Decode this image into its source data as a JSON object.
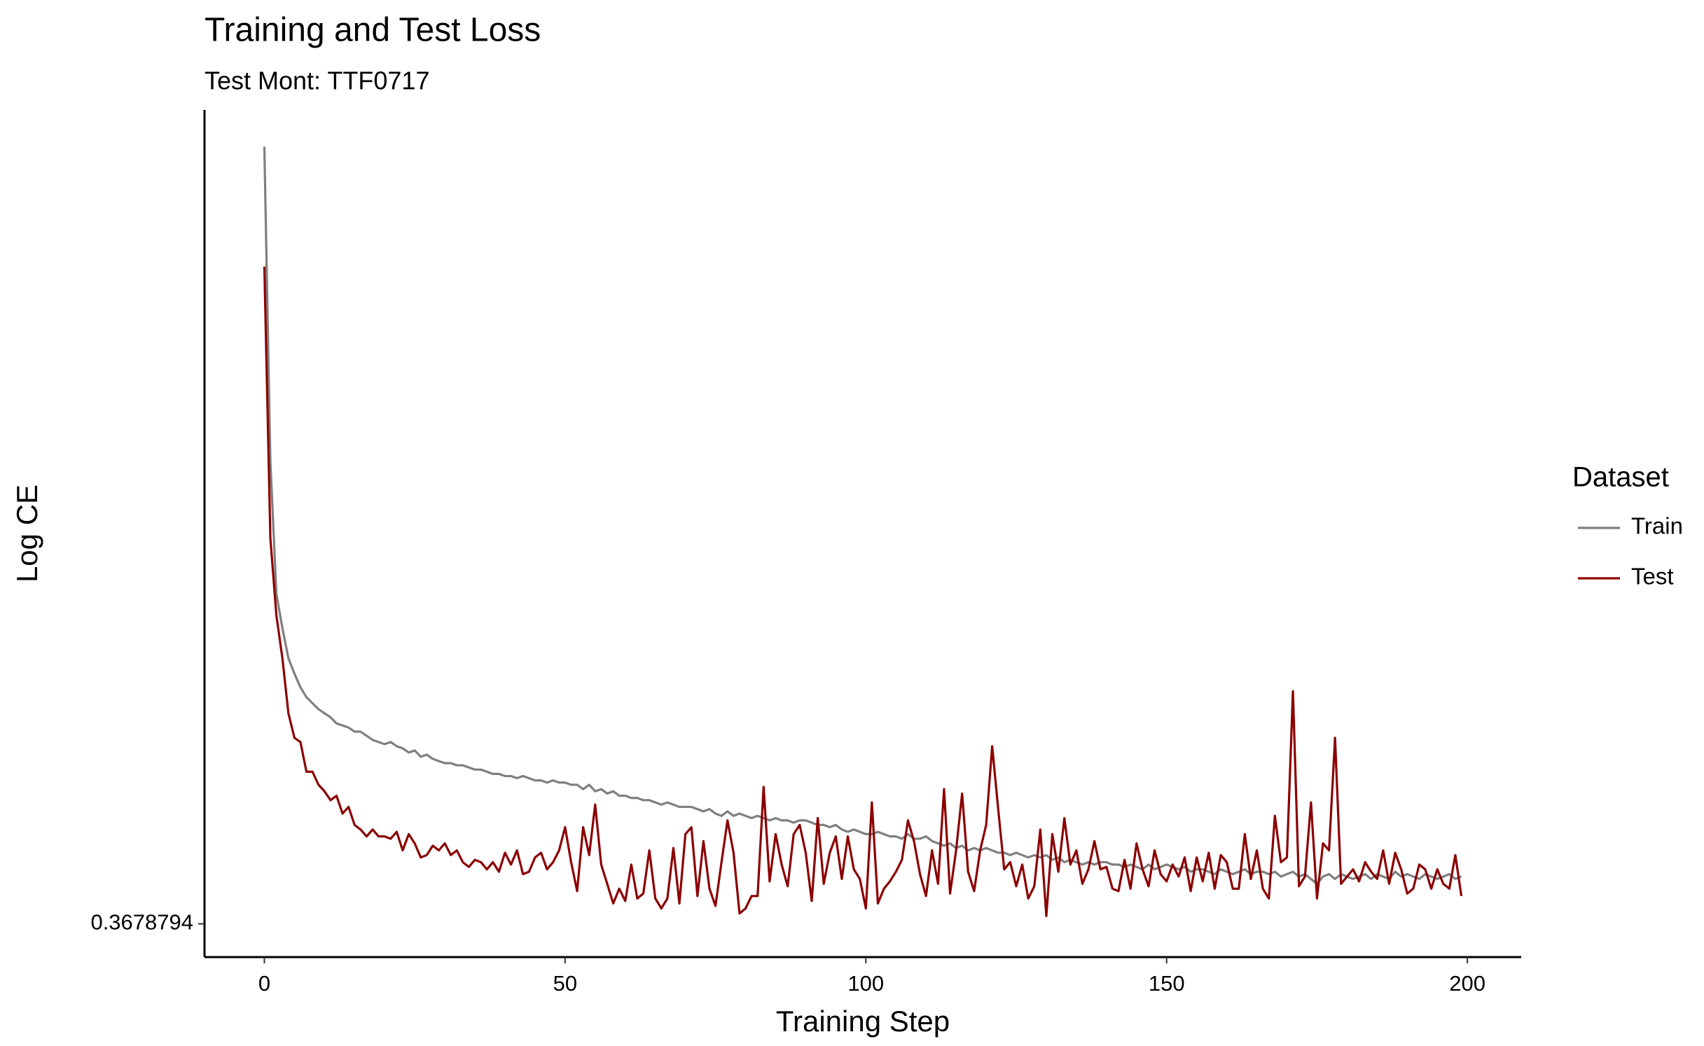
{
  "chart_data": {
    "type": "line",
    "title": "Training and Test Loss",
    "subtitle": "Test Mont: TTF0717",
    "x_label": "Training Step",
    "y_label": "Log CE",
    "legend_title": "Dataset",
    "legend_position": "right",
    "grid": false,
    "y_scale": "log",
    "xlim": [
      -9.95,
      208.95
    ],
    "xticks": [
      0,
      50,
      100,
      150,
      200
    ],
    "ylim": [
      0.355,
      0.88
    ],
    "yticks": [
      0.3678794
    ],
    "x": [
      0,
      1,
      2,
      3,
      4,
      5,
      6,
      7,
      8,
      9,
      10,
      11,
      12,
      13,
      14,
      15,
      16,
      17,
      18,
      19,
      20,
      21,
      22,
      23,
      24,
      25,
      26,
      27,
      28,
      29,
      30,
      31,
      32,
      33,
      34,
      35,
      36,
      37,
      38,
      39,
      40,
      41,
      42,
      43,
      44,
      45,
      46,
      47,
      48,
      49,
      50,
      51,
      52,
      53,
      54,
      55,
      56,
      57,
      58,
      59,
      60,
      61,
      62,
      63,
      64,
      65,
      66,
      67,
      68,
      69,
      70,
      71,
      72,
      73,
      74,
      75,
      76,
      77,
      78,
      79,
      80,
      81,
      82,
      83,
      84,
      85,
      86,
      87,
      88,
      89,
      90,
      91,
      92,
      93,
      94,
      95,
      96,
      97,
      98,
      99,
      100,
      101,
      102,
      103,
      104,
      105,
      106,
      107,
      108,
      109,
      110,
      111,
      112,
      113,
      114,
      115,
      116,
      117,
      118,
      119,
      120,
      121,
      122,
      123,
      124,
      125,
      126,
      127,
      128,
      129,
      130,
      131,
      132,
      133,
      134,
      135,
      136,
      137,
      138,
      139,
      140,
      141,
      142,
      143,
      144,
      145,
      146,
      147,
      148,
      149,
      150,
      151,
      152,
      153,
      154,
      155,
      156,
      157,
      158,
      159,
      160,
      161,
      162,
      163,
      164,
      165,
      166,
      167,
      168,
      169,
      170,
      171,
      172,
      173,
      174,
      175,
      176,
      177,
      178,
      179,
      180,
      181,
      182,
      183,
      184,
      185,
      186,
      187,
      188,
      189,
      190,
      191,
      192,
      193,
      194,
      195,
      196,
      197,
      198,
      199
    ],
    "series": [
      {
        "name": "Train",
        "color": "#7f7f7f",
        "values": [
          0.846,
          0.604,
          0.524,
          0.505,
          0.489,
          0.481,
          0.474,
          0.469,
          0.466,
          0.463,
          0.461,
          0.459,
          0.456,
          0.455,
          0.454,
          0.452,
          0.452,
          0.45,
          0.448,
          0.447,
          0.446,
          0.447,
          0.445,
          0.444,
          0.442,
          0.443,
          0.44,
          0.441,
          0.439,
          0.438,
          0.437,
          0.437,
          0.436,
          0.436,
          0.435,
          0.434,
          0.434,
          0.433,
          0.432,
          0.432,
          0.431,
          0.431,
          0.43,
          0.431,
          0.43,
          0.429,
          0.429,
          0.428,
          0.429,
          0.428,
          0.428,
          0.427,
          0.427,
          0.425,
          0.427,
          0.424,
          0.425,
          0.423,
          0.424,
          0.422,
          0.422,
          0.421,
          0.421,
          0.42,
          0.42,
          0.419,
          0.418,
          0.419,
          0.418,
          0.417,
          0.417,
          0.417,
          0.416,
          0.415,
          0.416,
          0.414,
          0.413,
          0.415,
          0.413,
          0.414,
          0.413,
          0.412,
          0.413,
          0.412,
          0.411,
          0.412,
          0.411,
          0.411,
          0.41,
          0.411,
          0.411,
          0.41,
          0.409,
          0.409,
          0.408,
          0.409,
          0.407,
          0.406,
          0.407,
          0.406,
          0.405,
          0.405,
          0.406,
          0.405,
          0.404,
          0.404,
          0.403,
          0.405,
          0.403,
          0.403,
          0.404,
          0.402,
          0.401,
          0.4,
          0.401,
          0.399,
          0.4,
          0.398,
          0.399,
          0.398,
          0.399,
          0.398,
          0.397,
          0.397,
          0.396,
          0.397,
          0.396,
          0.395,
          0.396,
          0.395,
          0.396,
          0.394,
          0.395,
          0.393,
          0.394,
          0.393,
          0.392,
          0.393,
          0.392,
          0.393,
          0.393,
          0.392,
          0.392,
          0.391,
          0.392,
          0.391,
          0.39,
          0.392,
          0.39,
          0.391,
          0.392,
          0.391,
          0.39,
          0.391,
          0.389,
          0.39,
          0.39,
          0.389,
          0.388,
          0.39,
          0.389,
          0.388,
          0.389,
          0.39,
          0.388,
          0.389,
          0.389,
          0.388,
          0.389,
          0.387,
          0.388,
          0.389,
          0.387,
          0.388,
          0.386,
          0.384,
          0.387,
          0.388,
          0.386,
          0.388,
          0.387,
          0.386,
          0.387,
          0.388,
          0.386,
          0.388,
          0.387,
          0.386,
          0.389,
          0.387,
          0.388,
          0.387,
          0.386,
          0.388,
          0.387,
          0.386,
          0.387,
          0.388,
          0.386,
          0.387
        ]
      },
      {
        "name": "Test",
        "color": "#8b0000",
        "values": [
          0.744,
          0.556,
          0.512,
          0.489,
          0.461,
          0.449,
          0.447,
          0.433,
          0.433,
          0.427,
          0.424,
          0.42,
          0.422,
          0.414,
          0.417,
          0.409,
          0.407,
          0.404,
          0.407,
          0.404,
          0.404,
          0.403,
          0.406,
          0.398,
          0.405,
          0.401,
          0.395,
          0.396,
          0.4,
          0.398,
          0.401,
          0.396,
          0.398,
          0.393,
          0.391,
          0.394,
          0.393,
          0.39,
          0.393,
          0.389,
          0.397,
          0.392,
          0.398,
          0.388,
          0.389,
          0.395,
          0.397,
          0.39,
          0.393,
          0.398,
          0.408,
          0.393,
          0.381,
          0.408,
          0.396,
          0.418,
          0.392,
          0.384,
          0.376,
          0.382,
          0.377,
          0.392,
          0.378,
          0.38,
          0.398,
          0.378,
          0.374,
          0.378,
          0.399,
          0.376,
          0.405,
          0.408,
          0.379,
          0.402,
          0.382,
          0.375,
          0.393,
          0.411,
          0.397,
          0.372,
          0.374,
          0.379,
          0.379,
          0.426,
          0.385,
          0.405,
          0.392,
          0.383,
          0.405,
          0.409,
          0.397,
          0.377,
          0.412,
          0.384,
          0.397,
          0.404,
          0.386,
          0.404,
          0.39,
          0.386,
          0.374,
          0.419,
          0.376,
          0.382,
          0.385,
          0.389,
          0.394,
          0.411,
          0.402,
          0.388,
          0.379,
          0.398,
          0.384,
          0.425,
          0.38,
          0.398,
          0.423,
          0.389,
          0.381,
          0.398,
          0.409,
          0.445,
          0.416,
          0.39,
          0.393,
          0.383,
          0.392,
          0.378,
          0.383,
          0.407,
          0.371,
          0.405,
          0.389,
          0.412,
          0.392,
          0.398,
          0.384,
          0.39,
          0.402,
          0.39,
          0.391,
          0.382,
          0.381,
          0.394,
          0.382,
          0.401,
          0.39,
          0.383,
          0.398,
          0.388,
          0.385,
          0.392,
          0.387,
          0.395,
          0.381,
          0.395,
          0.385,
          0.397,
          0.382,
          0.396,
          0.393,
          0.382,
          0.382,
          0.405,
          0.386,
          0.398,
          0.382,
          0.378,
          0.413,
          0.393,
          0.395,
          0.472,
          0.383,
          0.387,
          0.419,
          0.378,
          0.401,
          0.398,
          0.449,
          0.384,
          0.387,
          0.39,
          0.385,
          0.393,
          0.389,
          0.386,
          0.398,
          0.384,
          0.397,
          0.39,
          0.38,
          0.382,
          0.392,
          0.39,
          0.382,
          0.39,
          0.384,
          0.382,
          0.396,
          0.379
        ]
      }
    ]
  }
}
